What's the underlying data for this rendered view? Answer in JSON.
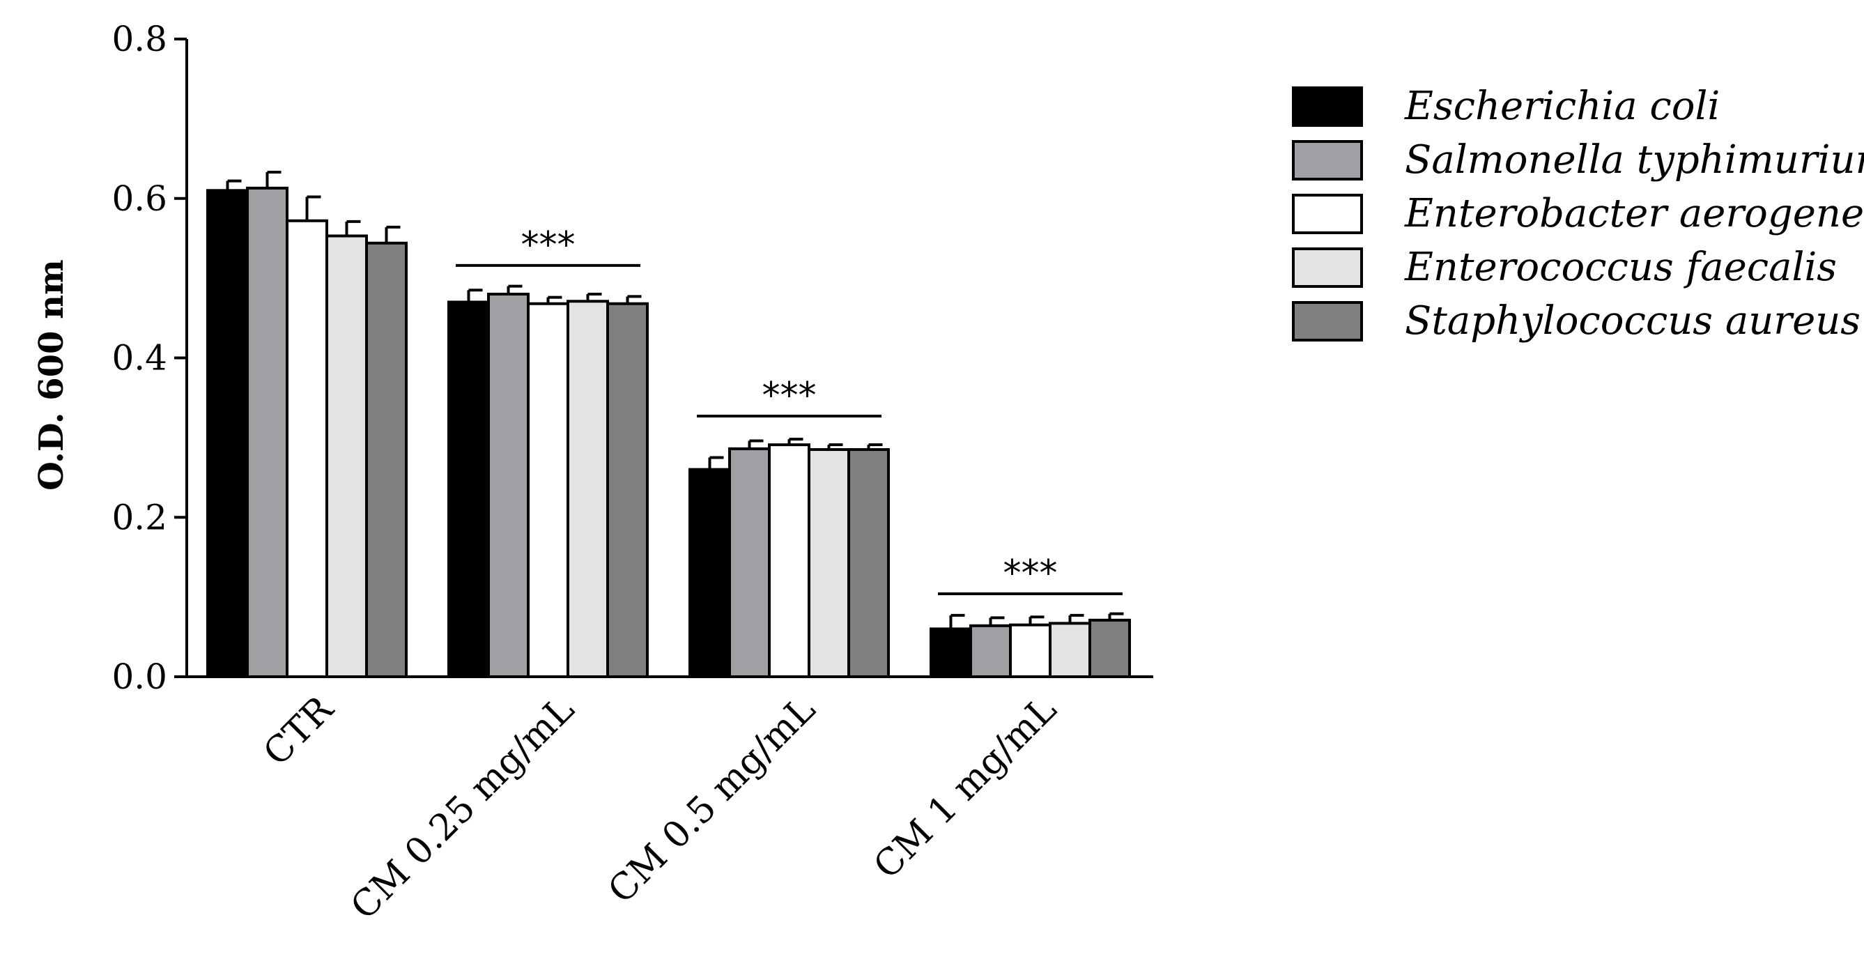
{
  "chart_data": {
    "type": "bar",
    "title": "",
    "xlabel": "",
    "ylabel": "O.D. 600 nm",
    "ylim": [
      0,
      0.8
    ],
    "yticks": [
      "0.0",
      "0.2",
      "0.4",
      "0.6",
      "0.8"
    ],
    "grid": false,
    "legend_position": "right",
    "categories": [
      "CTR",
      "CM 0.25 mg/mL",
      "CM 0.5 mg/mL",
      "CM 1 mg/mL"
    ],
    "series": [
      {
        "name": "Escherichia coli",
        "color": "#000000",
        "values": [
          0.61,
          0.47,
          0.26,
          0.06
        ],
        "errors": [
          0.012,
          0.015,
          0.015,
          0.017
        ]
      },
      {
        "name": "Salmonella typhimurium",
        "color": "#a0a0a4",
        "values": [
          0.613,
          0.48,
          0.286,
          0.064
        ],
        "errors": [
          0.02,
          0.01,
          0.01,
          0.01
        ]
      },
      {
        "name": "Enterobacter aerogenes",
        "color": "#ffffff",
        "values": [
          0.572,
          0.468,
          0.291,
          0.065
        ],
        "errors": [
          0.03,
          0.008,
          0.007,
          0.01
        ]
      },
      {
        "name": "Enterococcus faecalis",
        "color": "#e3e3e3",
        "values": [
          0.553,
          0.471,
          0.285,
          0.067
        ],
        "errors": [
          0.018,
          0.009,
          0.006,
          0.01
        ]
      },
      {
        "name": "Staphylococcus aureus",
        "color": "#808080",
        "values": [
          0.544,
          0.468,
          0.285,
          0.071
        ],
        "errors": [
          0.02,
          0.009,
          0.006,
          0.008
        ]
      }
    ],
    "annotations": [
      {
        "text": "***",
        "category": "CM 0.25 mg/mL",
        "y": 0.516
      },
      {
        "text": "***",
        "category": "CM 0.5 mg/mL",
        "y": 0.327
      },
      {
        "text": "***",
        "category": "CM 1 mg/mL",
        "y": 0.104
      }
    ]
  }
}
